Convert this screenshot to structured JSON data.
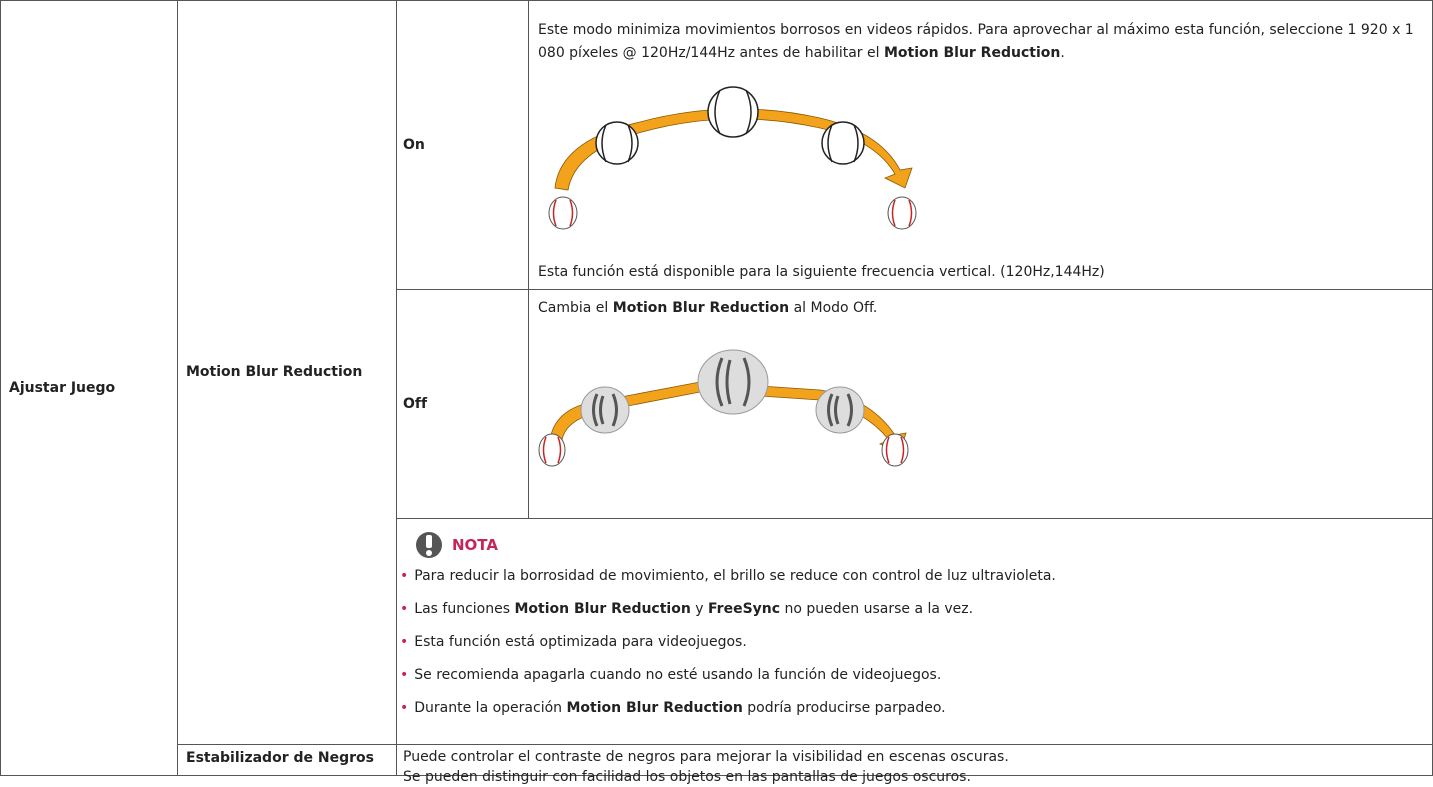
{
  "table": {
    "section": "Ajustar Juego",
    "feature": "Motion Blur Reduction",
    "modes": [
      {
        "label": "On",
        "description": [
          {
            "text": "Este modo minimiza movimientos borrosos en videos rápidos. Para aprovechar al máximo esta función, seleccione 1 920 x 1 080 píxeles @ 120Hz/144Hz antes de habilitar el ",
            "bold": false
          },
          {
            "text": "Motion Blur Reduction",
            "bold": true
          },
          {
            "text": ".",
            "bold": false
          }
        ],
        "footnote": "Esta función está disponible para la siguiente frecuencia vertical. (120Hz,144Hz)"
      },
      {
        "label": "Off",
        "description": [
          {
            "text": "Cambia el ",
            "bold": false
          },
          {
            "text": "Motion Blur Reduction",
            "bold": true
          },
          {
            "text": " al Modo Off.",
            "bold": false
          }
        ]
      }
    ],
    "nota": {
      "title": "NOTA",
      "items": [
        [
          {
            "text": "Para reducir la borrosidad de movimiento, el brillo se reduce con control de luz ultravioleta.",
            "bold": false
          }
        ],
        [
          {
            "text": "Las funciones ",
            "bold": false
          },
          {
            "text": "Motion Blur Reduction",
            "bold": true
          },
          {
            "text": " y ",
            "bold": false
          },
          {
            "text": "FreeSync",
            "bold": true
          },
          {
            "text": " no pueden usarse a la vez.",
            "bold": false
          }
        ],
        [
          {
            "text": "Esta función está optimizada para videojuegos.",
            "bold": false
          }
        ],
        [
          {
            "text": "Se recomienda apagarla cuando no esté usando la función de videojuegos.",
            "bold": false
          }
        ],
        [
          {
            "text": "Durante la operación ",
            "bold": false
          },
          {
            "text": "Motion Blur Reduction",
            "bold": true
          },
          {
            "text": " podría producirse parpadeo.",
            "bold": false
          }
        ]
      ]
    },
    "stabilizer": {
      "label": "Estabilizador de Negros",
      "lines": [
        "Puede controlar el contraste de negros para mejorar la visibilidad en escenas oscuras.",
        "Se pueden distinguir con facilidad los objetos en las pantallas de juegos oscuros."
      ]
    }
  }
}
